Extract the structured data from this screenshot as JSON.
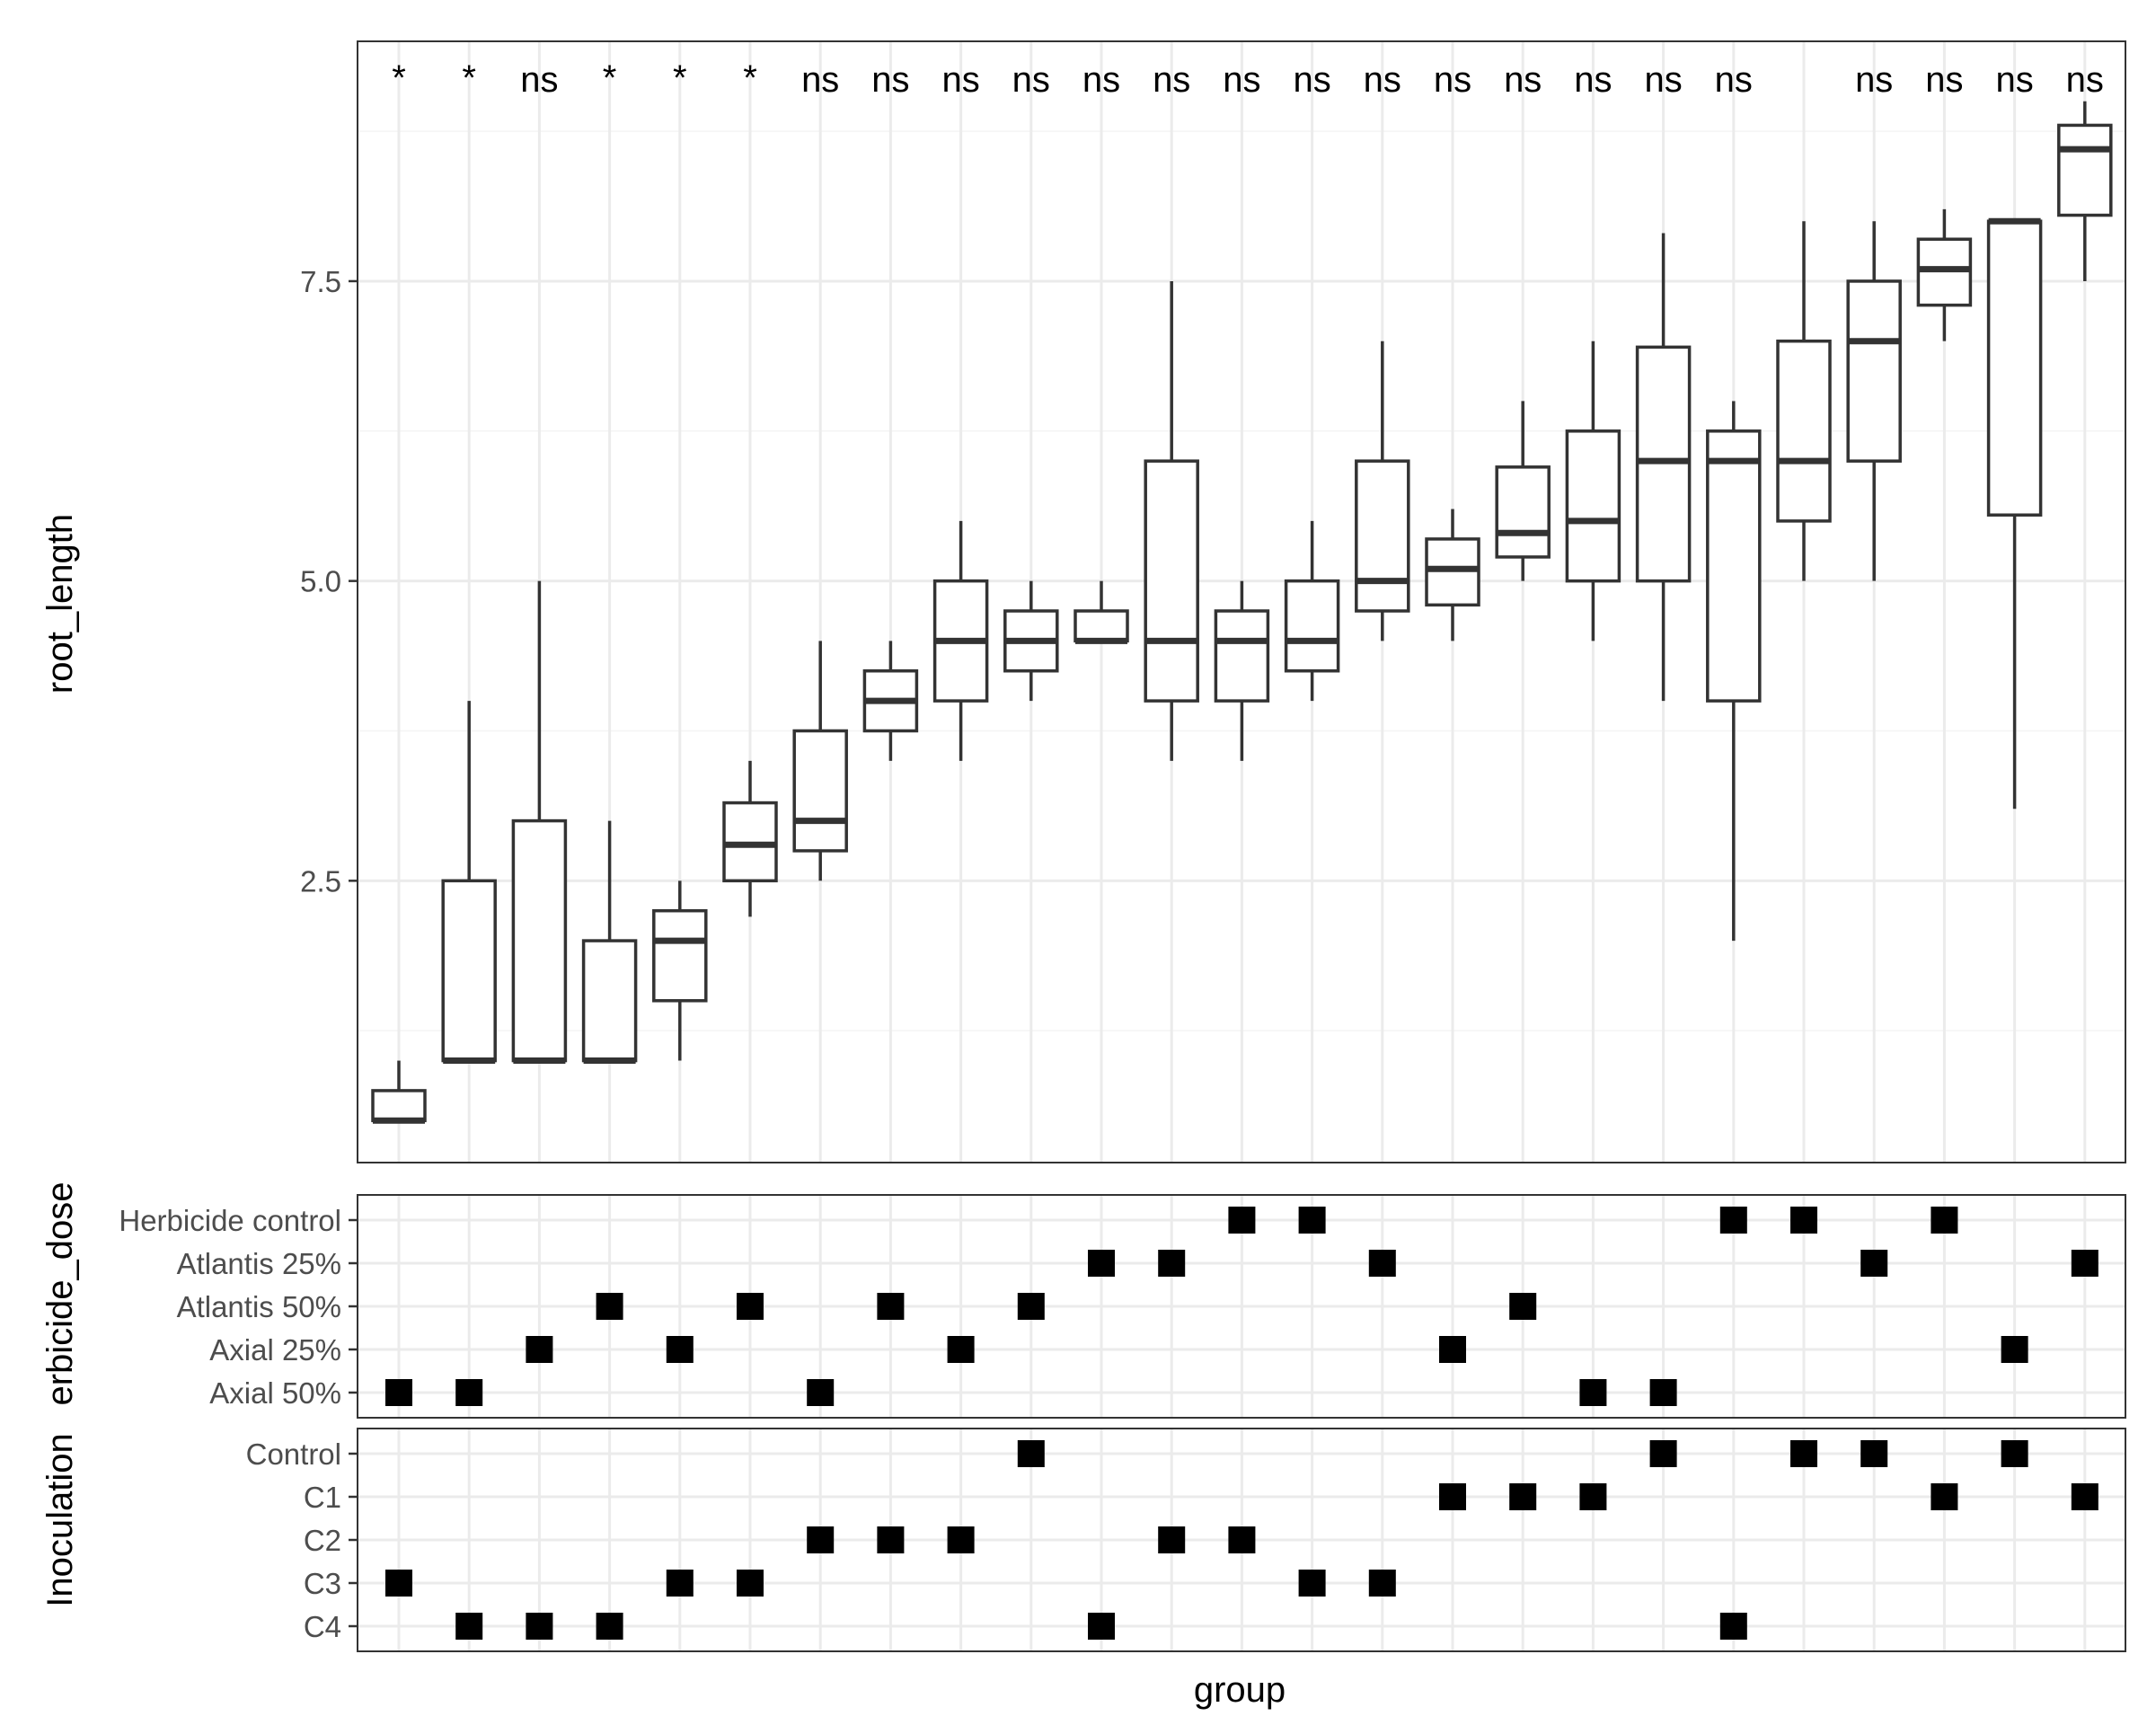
{
  "chart_data": [
    {
      "type": "box",
      "xlabel": "group",
      "ylabel": "root_length",
      "ylim": [
        0.15,
        9.5
      ],
      "yticks": [
        2.5,
        5.0,
        7.5
      ],
      "ytick_labels": [
        "2.5",
        "5.0",
        "7.5"
      ],
      "grid": true,
      "significance": [
        "*",
        "*",
        "ns",
        "*",
        "*",
        "*",
        "ns",
        "ns",
        "ns",
        "ns",
        "ns",
        "ns",
        "ns",
        "ns",
        "ns",
        "ns",
        "ns",
        "ns",
        "ns",
        "ns",
        "",
        "ns",
        "ns",
        "ns",
        "ns"
      ],
      "boxes": [
        {
          "low": 0.5,
          "q1": 0.5,
          "median": 0.5,
          "q3": 0.75,
          "high": 1.0
        },
        {
          "low": 1.0,
          "q1": 1.0,
          "median": 1.0,
          "q3": 2.5,
          "high": 4.0
        },
        {
          "low": 1.0,
          "q1": 1.0,
          "median": 1.0,
          "q3": 3.0,
          "high": 5.0
        },
        {
          "low": 1.0,
          "q1": 1.0,
          "median": 1.0,
          "q3": 2.0,
          "high": 3.0
        },
        {
          "low": 1.0,
          "q1": 1.5,
          "median": 2.0,
          "q3": 2.25,
          "high": 2.5
        },
        {
          "low": 2.2,
          "q1": 2.5,
          "median": 2.8,
          "q3": 3.15,
          "high": 3.5
        },
        {
          "low": 2.5,
          "q1": 2.75,
          "median": 3.0,
          "q3": 3.75,
          "high": 4.5
        },
        {
          "low": 3.5,
          "q1": 3.75,
          "median": 4.0,
          "q3": 4.25,
          "high": 4.5
        },
        {
          "low": 3.5,
          "q1": 4.0,
          "median": 4.5,
          "q3": 5.0,
          "high": 5.5
        },
        {
          "low": 4.0,
          "q1": 4.25,
          "median": 4.5,
          "q3": 4.75,
          "high": 5.0
        },
        {
          "low": 4.5,
          "q1": 4.5,
          "median": 4.5,
          "q3": 4.75,
          "high": 5.0
        },
        {
          "low": 3.5,
          "q1": 4.0,
          "median": 4.5,
          "q3": 6.0,
          "high": 7.5
        },
        {
          "low": 3.5,
          "q1": 4.0,
          "median": 4.5,
          "q3": 4.75,
          "high": 5.0
        },
        {
          "low": 4.0,
          "q1": 4.25,
          "median": 4.5,
          "q3": 5.0,
          "high": 5.5
        },
        {
          "low": 4.5,
          "q1": 4.75,
          "median": 5.0,
          "q3": 6.0,
          "high": 7.0
        },
        {
          "low": 4.5,
          "q1": 4.8,
          "median": 5.1,
          "q3": 5.35,
          "high": 5.6
        },
        {
          "low": 5.0,
          "q1": 5.2,
          "median": 5.4,
          "q3": 5.95,
          "high": 6.5
        },
        {
          "low": 4.5,
          "q1": 5.0,
          "median": 5.5,
          "q3": 6.25,
          "high": 7.0
        },
        {
          "low": 4.0,
          "q1": 5.0,
          "median": 6.0,
          "q3": 6.95,
          "high": 7.9
        },
        {
          "low": 2.0,
          "q1": 4.0,
          "median": 6.0,
          "q3": 6.25,
          "high": 6.5
        },
        {
          "low": 5.0,
          "q1": 5.5,
          "median": 6.0,
          "q3": 7.0,
          "high": 8.0
        },
        {
          "low": 5.0,
          "q1": 6.0,
          "median": 7.0,
          "q3": 7.5,
          "high": 8.0
        },
        {
          "low": 7.0,
          "q1": 7.3,
          "median": 7.6,
          "q3": 7.85,
          "high": 8.1
        },
        {
          "low": 3.1,
          "q1": 5.55,
          "median": 8.0,
          "q3": 8.0,
          "high": 8.0
        },
        {
          "low": 7.5,
          "q1": 8.05,
          "median": 8.6,
          "q3": 8.8,
          "high": 9.0
        }
      ]
    },
    {
      "type": "scatter",
      "ylabel": "erbicide_dose",
      "categories": [
        "Herbicide control",
        "Atlantis 25%",
        "Atlantis 50%",
        "Axial 25%",
        "Axial 50%"
      ],
      "points": [
        "Axial 50%",
        "Axial 50%",
        "Axial 25%",
        "Atlantis 50%",
        "Axial 25%",
        "Atlantis 50%",
        "Axial 50%",
        "Atlantis 50%",
        "Axial 25%",
        "Atlantis 50%",
        "Atlantis 25%",
        "Atlantis 25%",
        "Herbicide control",
        "Herbicide control",
        "Atlantis 25%",
        "Axial 25%",
        "Atlantis 50%",
        "Axial 50%",
        "Axial 50%",
        "Herbicide control",
        "Herbicide control",
        "Atlantis 25%",
        "Herbicide control",
        "Axial 25%",
        "Atlantis 25%"
      ]
    },
    {
      "type": "scatter",
      "ylabel": "Inoculation",
      "categories": [
        "Control",
        "C1",
        "C2",
        "C3",
        "C4"
      ],
      "points": [
        "C3",
        "C4",
        "C4",
        "C4",
        "C3",
        "C3",
        "C2",
        "C2",
        "C2",
        "Control",
        "C4",
        "C2",
        "C2",
        "C3",
        "C3",
        "C1",
        "C1",
        "C1",
        "Control",
        "C4",
        "Control",
        "Control",
        "C1",
        "Control",
        "C1"
      ]
    }
  ]
}
